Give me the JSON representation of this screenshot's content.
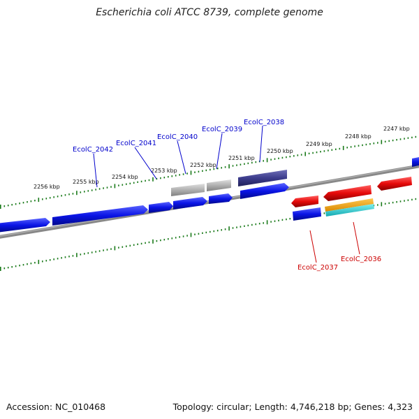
{
  "title": "Escherichia coli ATCC 8739, complete genome",
  "footer": {
    "accession": "Accession: NC_010468",
    "info": "Topology: circular; Length: 4,746,218 bp; Genes: 4,323"
  },
  "scale_labels": [
    "2256 kbp",
    "2255 kbp",
    "2254 kbp",
    "2253 kbp",
    "2252 kbp",
    "2251 kbp",
    "2250 kbp",
    "2249 kbp",
    "2248 kbp",
    "2247 kbp"
  ],
  "gene_labels": [
    {
      "text": "EcolC_2042",
      "strand": "forward"
    },
    {
      "text": "EcolC_2041",
      "strand": "forward"
    },
    {
      "text": "EcolC_2040",
      "strand": "forward"
    },
    {
      "text": "EcolC_2039",
      "strand": "forward"
    },
    {
      "text": "EcolC_2038",
      "strand": "forward"
    },
    {
      "text": "EcolC_2037",
      "strand": "reverse"
    },
    {
      "text": "EcolC_2036",
      "strand": "reverse"
    }
  ],
  "colors": {
    "forward_cds": "#0a14e6",
    "reverse_cds": "#e60a0a",
    "gray_feature": "#b0b0b0",
    "purple_feature": "#3c3c8c",
    "orange_feature": "#f0a000",
    "cyan_feature": "#20d0d8",
    "backbone": "#888888",
    "ticks": "#1a7a1a",
    "forward_label": "#0000cc",
    "reverse_label": "#cc0000"
  }
}
